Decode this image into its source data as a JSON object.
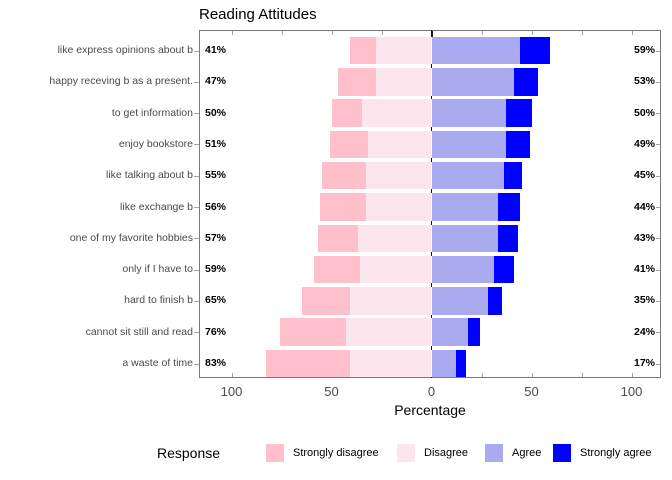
{
  "title": "Reading Attitudes",
  "axis": {
    "xlabel": "Percentage",
    "bottom_tick_labels": [
      "100",
      "50",
      "0",
      "50",
      "100"
    ]
  },
  "legend": {
    "title": "Response",
    "items": [
      {
        "label": "Strongly disagree",
        "color": "#ffc0cb"
      },
      {
        "label": "Disagree",
        "color": "#fce5ec"
      },
      {
        "label": "Agree",
        "color": "#aaaaf0"
      },
      {
        "label": "Strongly agree",
        "color": "#0000ff"
      }
    ]
  },
  "chart_data": {
    "type": "bar",
    "subtype": "diverging-stacked-likert",
    "title": "Reading Attitudes",
    "xlabel": "Percentage",
    "legend_title": "Response",
    "legend_position": "bottom",
    "series_names": [
      "Strongly disagree",
      "Disagree",
      "Agree",
      "Strongly agree"
    ],
    "series_colors": [
      "#ffc0cb",
      "#fce5ec",
      "#aaaaf0",
      "#0000ff"
    ],
    "x_axis": {
      "tick_values": [
        -100,
        -50,
        0,
        50,
        100
      ],
      "tick_labels": [
        "100",
        "50",
        "0",
        "50",
        "100"
      ],
      "minor_tick_step": 25,
      "range": [
        -115,
        115
      ]
    },
    "rows": [
      {
        "label": "like express opinions about b",
        "left_pct": "41%",
        "right_pct": "59%",
        "values": [
          13,
          28,
          44,
          15
        ]
      },
      {
        "label": "happy receving b as a present.",
        "left_pct": "47%",
        "right_pct": "53%",
        "values": [
          19,
          28,
          41,
          12
        ]
      },
      {
        "label": "to get information",
        "left_pct": "50%",
        "right_pct": "50%",
        "values": [
          15,
          35,
          37,
          13
        ]
      },
      {
        "label": "enjoy bookstore",
        "left_pct": "51%",
        "right_pct": "49%",
        "values": [
          19,
          32,
          37,
          12
        ]
      },
      {
        "label": "like talking about b",
        "left_pct": "55%",
        "right_pct": "45%",
        "values": [
          22,
          33,
          36,
          9
        ]
      },
      {
        "label": "like exchange b",
        "left_pct": "56%",
        "right_pct": "44%",
        "values": [
          23,
          33,
          33,
          11
        ]
      },
      {
        "label": "one of my favorite hobbies",
        "left_pct": "57%",
        "right_pct": "43%",
        "values": [
          20,
          37,
          33,
          10
        ]
      },
      {
        "label": "only if I have to",
        "left_pct": "59%",
        "right_pct": "41%",
        "values": [
          23,
          36,
          31,
          10
        ]
      },
      {
        "label": "hard to finish b",
        "left_pct": "65%",
        "right_pct": "35%",
        "values": [
          24,
          41,
          28,
          7
        ]
      },
      {
        "label": "cannot sit still and read",
        "left_pct": "76%",
        "right_pct": "24%",
        "values": [
          33,
          43,
          18,
          6
        ]
      },
      {
        "label": "a waste of time",
        "left_pct": "83%",
        "right_pct": "17%",
        "values": [
          42,
          41,
          12,
          5
        ]
      }
    ]
  }
}
